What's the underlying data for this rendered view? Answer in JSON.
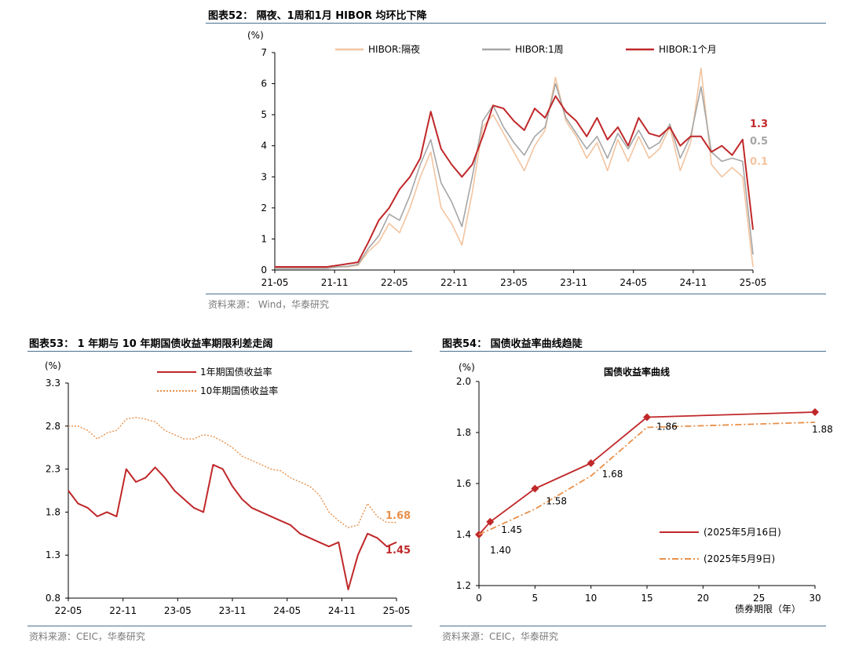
{
  "charts": {
    "c52": {
      "title": "图表52： 隔夜、1周和1月 HIBOR 均环比下降",
      "source": "资料来源： Wind，华泰研究",
      "chart_data": {
        "type": "line",
        "unit": "(%)",
        "ylim": [
          0,
          7
        ],
        "yticks": [
          "0",
          "1",
          "2",
          "3",
          "4",
          "5",
          "6",
          "7"
        ],
        "x_ticks": [
          "21-05",
          "21-11",
          "22-05",
          "22-11",
          "23-05",
          "23-11",
          "24-05",
          "24-11",
          "25-05"
        ],
        "series": [
          {
            "name": "HIBOR:隔夜",
            "color": "#f2c4a0",
            "end_label": "0.1",
            "values": [
              0.05,
              0.05,
              0.05,
              0.05,
              0.05,
              0.05,
              0.1,
              0.1,
              0.15,
              0.6,
              0.9,
              1.5,
              1.2,
              2.0,
              3.0,
              3.8,
              2.0,
              1.5,
              0.8,
              2.5,
              4.6,
              5.0,
              4.4,
              3.8,
              3.2,
              4.0,
              4.5,
              6.2,
              4.8,
              4.3,
              3.6,
              4.1,
              3.2,
              4.2,
              3.5,
              4.3,
              3.6,
              3.9,
              4.6,
              3.2,
              4.1,
              6.5,
              3.4,
              3.0,
              3.3,
              3.0,
              0.1
            ]
          },
          {
            "name": "HIBOR:1周",
            "color": "#a6a6a6",
            "end_label": "0.5",
            "values": [
              0.05,
              0.05,
              0.05,
              0.05,
              0.05,
              0.05,
              0.1,
              0.12,
              0.18,
              0.7,
              1.1,
              1.8,
              1.6,
              2.4,
              3.4,
              4.2,
              2.8,
              2.2,
              1.4,
              3.0,
              4.8,
              5.3,
              4.6,
              4.1,
              3.7,
              4.3,
              4.6,
              6.0,
              4.9,
              4.4,
              3.9,
              4.3,
              3.6,
              4.4,
              3.9,
              4.5,
              3.9,
              4.1,
              4.7,
              3.6,
              4.3,
              5.9,
              3.8,
              3.5,
              3.6,
              3.5,
              0.5
            ]
          },
          {
            "name": "HIBOR:1个月",
            "color": "#c0282a",
            "end_label": "1.3",
            "values": [
              0.1,
              0.1,
              0.1,
              0.1,
              0.1,
              0.1,
              0.15,
              0.2,
              0.25,
              0.9,
              1.6,
              2.0,
              2.6,
              3.0,
              3.6,
              5.1,
              3.9,
              3.4,
              3.0,
              3.4,
              4.3,
              5.3,
              5.2,
              4.8,
              4.5,
              5.2,
              4.9,
              5.6,
              5.1,
              4.8,
              4.3,
              4.9,
              4.2,
              4.6,
              4.0,
              4.9,
              4.4,
              4.3,
              4.6,
              4.0,
              4.3,
              4.3,
              3.8,
              4.0,
              3.7,
              4.2,
              1.3
            ]
          }
        ]
      }
    },
    "c53": {
      "title": "图表53： 1 年期与 10 年期国债收益率期限利差走阔",
      "source": "资料来源：CEIC，华泰研究",
      "chart_data": {
        "type": "line",
        "unit": "(%)",
        "ylim": [
          0.8,
          3.3
        ],
        "yticks": [
          "0.8",
          "1.3",
          "1.8",
          "2.3",
          "2.8",
          "3.3"
        ],
        "x_ticks": [
          "22-05",
          "22-11",
          "23-05",
          "23-11",
          "24-05",
          "24-11",
          "25-05"
        ],
        "series": [
          {
            "name": "1年期国债收益率",
            "color": "#c0282a",
            "dash": "",
            "end_label": "1.45",
            "values": [
              2.05,
              1.9,
              1.85,
              1.75,
              1.8,
              1.75,
              2.3,
              2.15,
              2.2,
              2.32,
              2.2,
              2.05,
              1.95,
              1.85,
              1.8,
              2.35,
              2.3,
              2.1,
              1.95,
              1.85,
              1.8,
              1.75,
              1.7,
              1.65,
              1.55,
              1.5,
              1.45,
              1.4,
              1.45,
              0.9,
              1.3,
              1.55,
              1.5,
              1.4,
              1.45
            ]
          },
          {
            "name": "10年期国债收益率",
            "color": "#e8904a",
            "dash": "2,2",
            "end_label": "1.68",
            "values": [
              2.8,
              2.8,
              2.75,
              2.65,
              2.72,
              2.75,
              2.88,
              2.9,
              2.88,
              2.85,
              2.75,
              2.7,
              2.65,
              2.65,
              2.7,
              2.68,
              2.62,
              2.55,
              2.45,
              2.4,
              2.35,
              2.3,
              2.28,
              2.2,
              2.15,
              2.1,
              2.0,
              1.8,
              1.7,
              1.62,
              1.65,
              1.9,
              1.75,
              1.68,
              1.68
            ]
          }
        ]
      }
    },
    "c54": {
      "title": "图表54： 国债收益率曲线趋陡",
      "source": "资料来源：CEIC，华泰研究",
      "chart_data": {
        "type": "line",
        "unit": "(%)",
        "chart_title": "国债收益率曲线",
        "xlabel": "债券期限（年）",
        "xlim": [
          0,
          30
        ],
        "ylim": [
          1.2,
          2.0
        ],
        "xticks": [
          "0",
          "5",
          "10",
          "15",
          "20",
          "25",
          "30"
        ],
        "yticks": [
          "1.2",
          "1.4",
          "1.6",
          "1.8",
          "2.0"
        ],
        "series": [
          {
            "name": "(2025年5月16日)",
            "color": "#c0282a",
            "dash": "",
            "markers": true,
            "x": [
              0,
              1,
              5,
              10,
              15,
              30
            ],
            "y": [
              1.4,
              1.45,
              1.58,
              1.68,
              1.86,
              1.88
            ]
          },
          {
            "name": "(2025年5月9日)",
            "color": "#e8904a",
            "dash": "8,3,2,3",
            "markers": false,
            "x": [
              0,
              1,
              5,
              10,
              15,
              30
            ],
            "y": [
              1.4,
              1.42,
              1.5,
              1.63,
              1.82,
              1.84
            ]
          }
        ],
        "data_labels": [
          "1.40",
          "1.45",
          "1.58",
          "1.68",
          "1.86",
          "1.88"
        ]
      }
    }
  }
}
